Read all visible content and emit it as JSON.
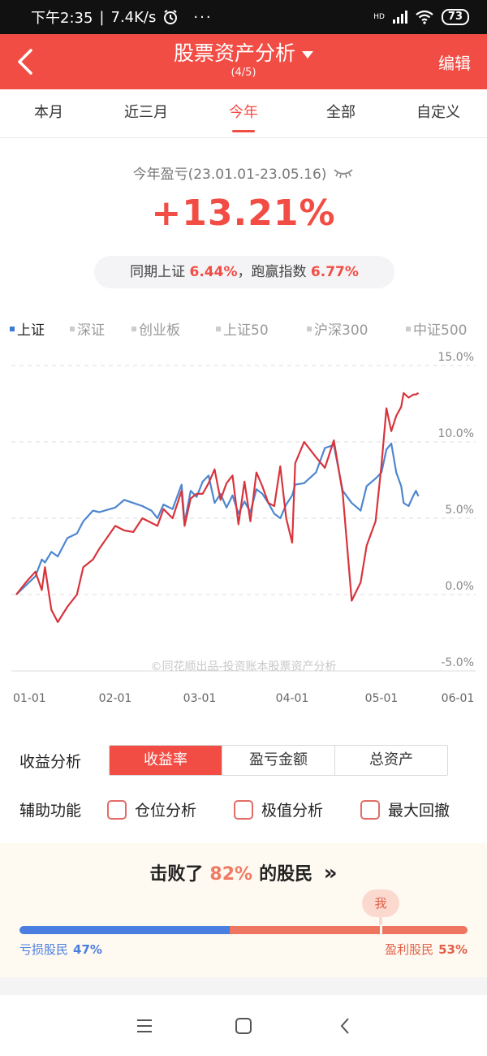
{
  "status_bar": {
    "time": "下午2:35",
    "speed": "7.4K/s",
    "dots": "···",
    "hd": "HD",
    "battery": "73"
  },
  "header": {
    "title": "股票资产分析",
    "subtitle": "(4/5)",
    "edit": "编辑"
  },
  "tabs": [
    {
      "label": "本月"
    },
    {
      "label": "近三月"
    },
    {
      "label": "今年"
    },
    {
      "label": "全部"
    },
    {
      "label": "自定义"
    }
  ],
  "summary": {
    "label": "今年盈亏(23.01.01-23.05.16)",
    "value": "+13.21%",
    "compare_prefix": "同期上证",
    "compare_index": "6.44%",
    "compare_mid": "，跑赢指数",
    "compare_excess": "6.77%"
  },
  "indices": [
    {
      "label": "上证"
    },
    {
      "label": "深证"
    },
    {
      "label": "创业板"
    },
    {
      "label": "上证50"
    },
    {
      "label": "沪深300"
    },
    {
      "label": "中证500"
    }
  ],
  "chart_data": {
    "type": "line",
    "y_tick_labels": [
      "15.0%",
      "10.0%",
      "5.0%",
      "0.0%",
      "-5.0%"
    ],
    "y_ticks": [
      15,
      10,
      5,
      0,
      -5
    ],
    "ylim": [
      -5,
      15
    ],
    "x_tick_labels": [
      "01-01",
      "02-01",
      "03-01",
      "04-01",
      "05-01",
      "06-01"
    ],
    "watermark": "©同花顺出品-投资账本股票资产分析",
    "grid": true,
    "colors": {
      "portfolio": "#d8343c",
      "index": "#4d86d0"
    },
    "series": [
      {
        "key": "portfolio",
        "x": [
          "01-01",
          "01-04",
          "01-07",
          "01-09",
          "01-10",
          "01-12",
          "01-14",
          "01-17",
          "01-20",
          "01-22",
          "01-25",
          "01-27",
          "02-01",
          "02-04",
          "02-07",
          "02-10",
          "02-13",
          "02-15",
          "02-17",
          "02-20",
          "02-23",
          "02-24",
          "02-26",
          "02-28",
          "03-02",
          "03-04",
          "03-06",
          "03-08",
          "03-10",
          "03-12",
          "03-14",
          "03-16",
          "03-18",
          "03-20",
          "03-22",
          "03-24",
          "03-26",
          "03-28",
          "03-30",
          "04-01",
          "04-02",
          "04-05",
          "04-09",
          "04-12",
          "04-15",
          "04-18",
          "04-21",
          "04-24",
          "04-26",
          "04-29",
          "05-01",
          "05-03",
          "05-05",
          "05-07",
          "05-09",
          "05-10",
          "05-12",
          "05-14",
          "05-15",
          "05-16"
        ],
        "values": [
          0.0,
          0.8,
          1.5,
          0.3,
          1.8,
          -1.0,
          -1.8,
          -0.8,
          0.0,
          1.8,
          2.3,
          3.0,
          4.5,
          4.2,
          4.1,
          5.0,
          4.7,
          4.5,
          5.6,
          5.0,
          6.8,
          4.5,
          6.3,
          6.6,
          6.6,
          7.3,
          8.2,
          6.2,
          7.3,
          7.8,
          4.6,
          7.4,
          4.8,
          8.0,
          7.1,
          6.0,
          5.8,
          8.4,
          5.0,
          3.4,
          8.6,
          10.0,
          9.0,
          8.3,
          10.1,
          6.6,
          -0.4,
          0.8,
          3.2,
          4.8,
          8.5,
          12.2,
          10.7,
          11.7,
          12.3,
          13.2,
          12.9,
          13.1,
          13.1,
          13.21
        ]
      },
      {
        "key": "index",
        "x": [
          "01-01",
          "01-04",
          "01-07",
          "01-09",
          "01-10",
          "01-12",
          "01-14",
          "01-17",
          "01-20",
          "01-22",
          "01-25",
          "01-27",
          "02-01",
          "02-04",
          "02-07",
          "02-10",
          "02-13",
          "02-15",
          "02-17",
          "02-20",
          "02-23",
          "02-24",
          "02-26",
          "02-28",
          "03-02",
          "03-04",
          "03-06",
          "03-08",
          "03-10",
          "03-12",
          "03-14",
          "03-16",
          "03-18",
          "03-20",
          "03-22",
          "03-24",
          "03-26",
          "03-28",
          "03-30",
          "04-01",
          "04-02",
          "04-05",
          "04-09",
          "04-12",
          "04-15",
          "04-18",
          "04-21",
          "04-24",
          "04-26",
          "04-29",
          "05-01",
          "05-03",
          "05-05",
          "05-07",
          "05-09",
          "05-10",
          "05-12",
          "05-14",
          "05-15",
          "05-16"
        ],
        "values": [
          0.0,
          0.6,
          1.2,
          2.3,
          2.1,
          2.8,
          2.5,
          3.7,
          4.0,
          4.8,
          5.5,
          5.4,
          5.7,
          6.2,
          6.0,
          5.8,
          5.5,
          5.0,
          5.9,
          5.6,
          7.2,
          4.7,
          6.8,
          6.4,
          7.4,
          7.8,
          6.0,
          6.6,
          5.7,
          6.5,
          5.3,
          6.1,
          5.4,
          6.9,
          6.6,
          6.0,
          5.3,
          5.0,
          5.9,
          6.5,
          7.2,
          7.3,
          8.0,
          9.6,
          9.8,
          6.8,
          6.0,
          5.5,
          7.1,
          7.6,
          8.0,
          9.5,
          9.9,
          8.0,
          7.1,
          6.0,
          5.8,
          6.5,
          6.8,
          6.44
        ]
      }
    ]
  },
  "analysis": {
    "label": "收益分析",
    "options": [
      "收益率",
      "盈亏金额",
      "总资产"
    ]
  },
  "aux": {
    "label": "辅助功能",
    "options": [
      "仓位分析",
      "极值分析",
      "最大回撤"
    ]
  },
  "beat": {
    "prefix": "击败了",
    "percent": "82%",
    "suffix": "的股民",
    "arrow": "»",
    "me": "我",
    "loss_label": "亏损股民",
    "loss_pct": "47%",
    "gain_label": "盈利股民",
    "gain_pct": "53%",
    "loss_fraction": 0.47
  }
}
